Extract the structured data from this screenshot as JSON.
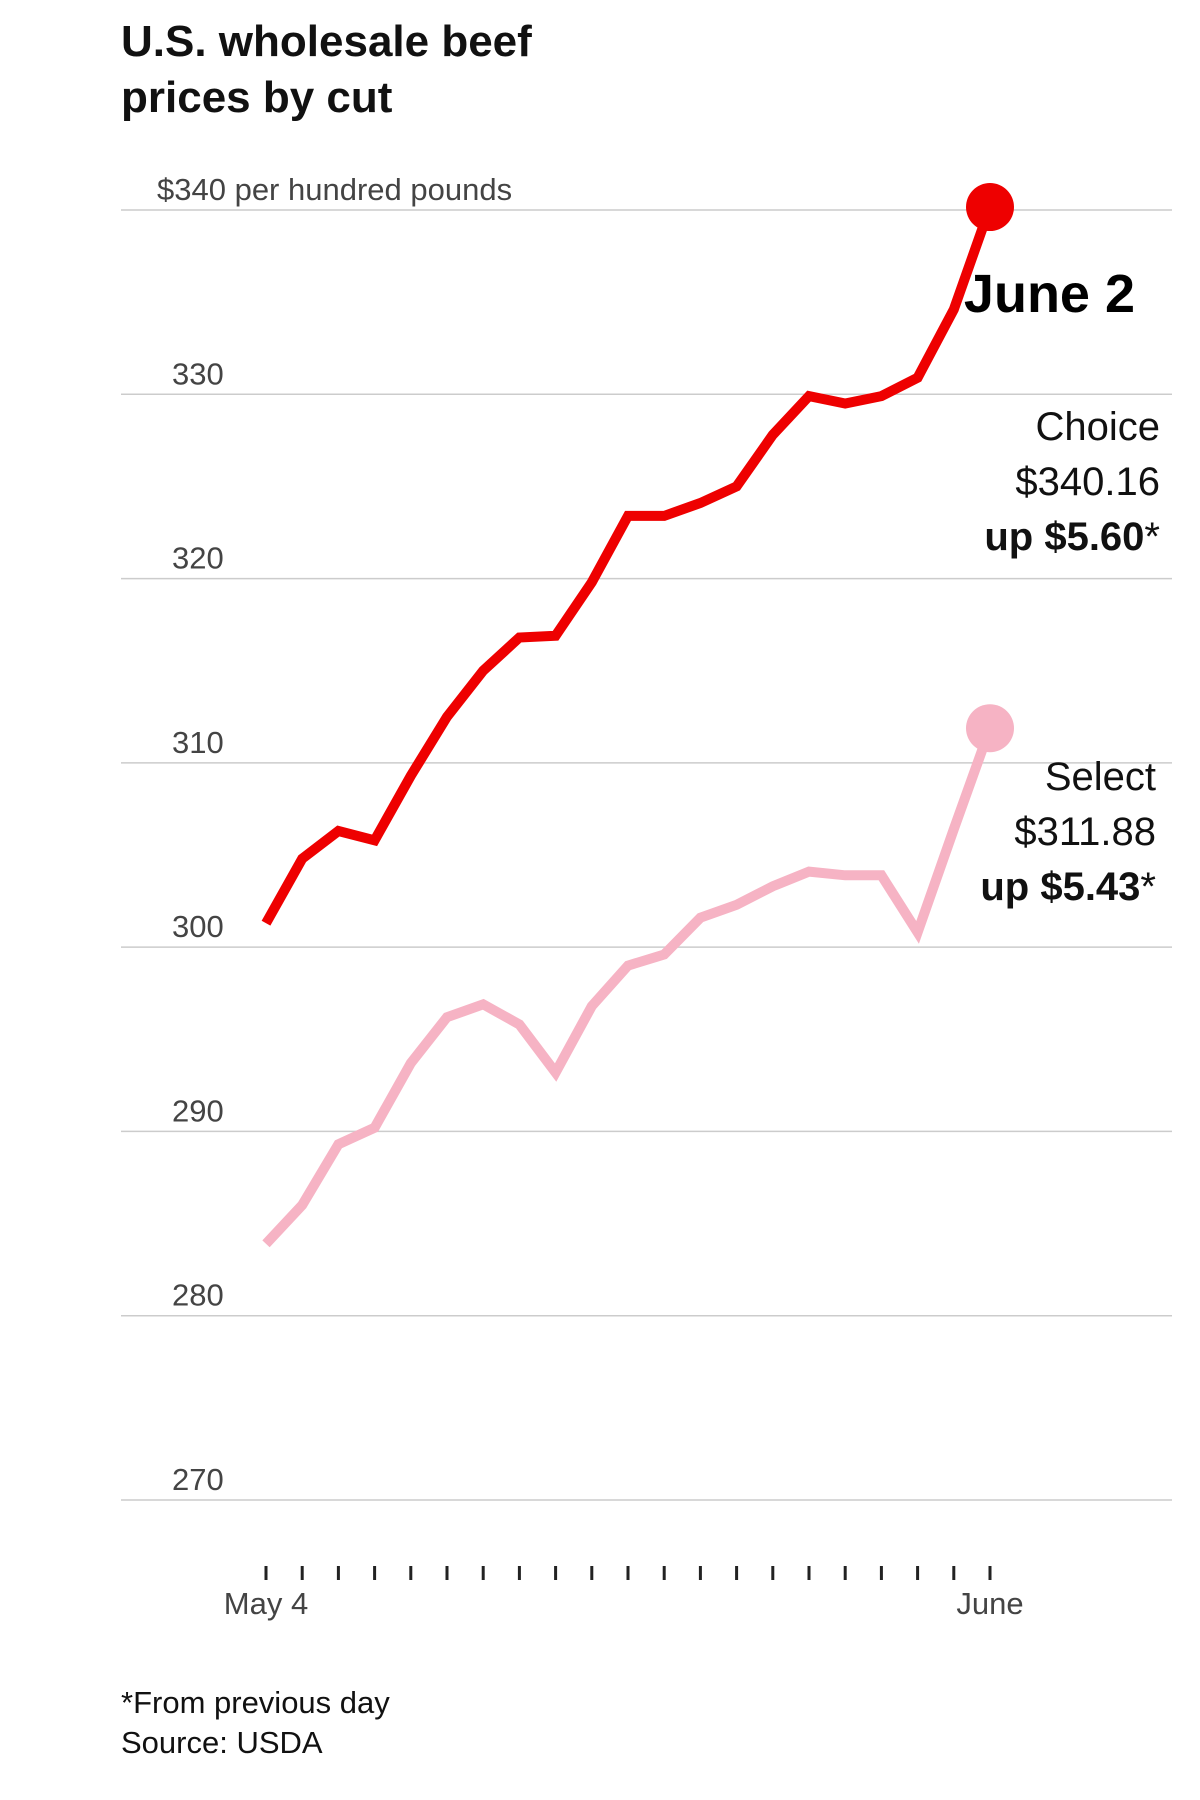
{
  "title_lines": [
    "U.S. wholesale beef",
    "prices by cut"
  ],
  "chart_data": {
    "type": "line",
    "title": "U.S. wholesale beef prices by cut",
    "y_unit_label": "$340 per hundred pounds",
    "ylim": [
      270,
      340
    ],
    "y_ticks": [
      {
        "value": 340,
        "label": "$340 per hundred pounds"
      },
      {
        "value": 330,
        "label": "330"
      },
      {
        "value": 320,
        "label": "320"
      },
      {
        "value": 310,
        "label": "310"
      },
      {
        "value": 300,
        "label": "300"
      },
      {
        "value": 290,
        "label": "290"
      },
      {
        "value": 280,
        "label": "280"
      },
      {
        "value": 270,
        "label": "270"
      }
    ],
    "x_tick_count": 21,
    "x_labels": [
      {
        "index": 0,
        "label": "May 4"
      },
      {
        "index": 20,
        "label": "June"
      }
    ],
    "grid": true,
    "series": [
      {
        "name": "Choice",
        "color": "#ee0000",
        "values": [
          301.3,
          304.8,
          306.3,
          305.8,
          309.3,
          312.5,
          315.0,
          316.8,
          316.9,
          319.8,
          323.4,
          323.4,
          324.1,
          325.0,
          327.8,
          329.9,
          329.5,
          329.9,
          330.9,
          334.6,
          340.16
        ],
        "end_label": {
          "name": "Choice",
          "price": "$340.16",
          "change": "up $5.60",
          "asterisk": "*"
        }
      },
      {
        "name": "Select",
        "color": "#f6b3c4",
        "values": [
          283.9,
          286.0,
          289.3,
          290.2,
          293.7,
          296.2,
          296.9,
          295.8,
          293.2,
          296.8,
          299.0,
          299.6,
          301.6,
          302.3,
          303.3,
          304.1,
          303.9,
          303.9,
          300.8,
          306.4,
          311.88
        ],
        "end_label": {
          "name": "Select",
          "price": "$311.88",
          "change": "up $5.43",
          "asterisk": "*"
        }
      }
    ],
    "annotation": "June 2"
  },
  "footnote": "*From previous day",
  "source": "Source: USDA"
}
